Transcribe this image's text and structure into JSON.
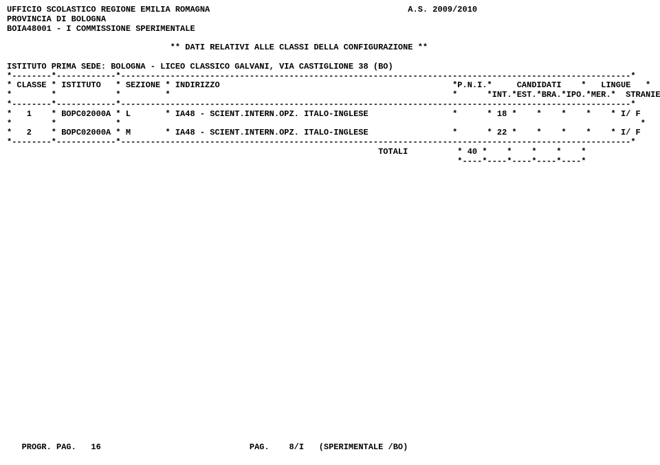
{
  "header": {
    "office": "UFFICIO SCOLASTICO REGIONE EMILIA ROMAGNA",
    "year_label": "A.S. 2009/2010",
    "province": "PROVINCIA DI BOLOGNA",
    "commission": "BOIA48001 - I COMMISSIONE SPERIMENTALE",
    "subtitle": "** DATI RELATIVI ALLE CLASSI DELLA CONFIGURAZIONE **",
    "institute": "ISTITUTO PRIMA SEDE: BOLOGNA - LICEO CLASSICO GALVANI, VIA CASTIGLIONE 38 (BO)"
  },
  "table": {
    "sep_full": "*--------*------------*-------------------------------------------------------------------------------------------------------*",
    "hdr1": "* CLASSE * ISTITUTO   * SEZIONE * INDIRIZZO                                               *P.N.I.*     CANDIDATI    *   LINGUE   *",
    "hdr2": "*        *            *         *                                                         *      *INT.*EST.*BRA.*IPO.*MER.*  STRANIERE *",
    "row1": "*   1    * BOPC02000A * L       * IA48 - SCIENT.INTERN.OPZ. ITALO-INGLESE                 *      * 18 *    *    *    *    * I/ F       *",
    "blank_row": "*        *            *                                                                                                         *",
    "row2": "*   2    * BOPC02000A * M       * IA48 - SCIENT.INTERN.OPZ. ITALO-INGLESE                 *      * 22 *    *    *    *    * I/ F       *",
    "totali": "                                                                           TOTALI          * 40 *    *    *    *    *",
    "tot_sep": "                                                                                           *----*----*----*----*----*"
  },
  "footer": {
    "progr": "PROGR. PAG.   16",
    "pag": "PAG.    8/I",
    "context": "(SPERIMENTALE /BO)"
  }
}
